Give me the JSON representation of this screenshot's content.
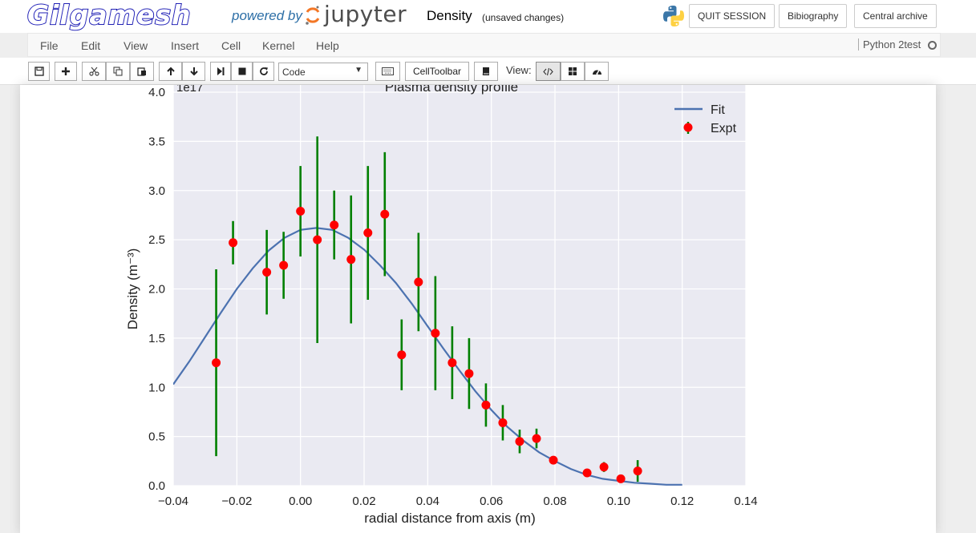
{
  "header": {
    "logo_text": "Gilgamesh",
    "powered_by": "powered by",
    "jupyter_word": "jupyter",
    "notebook_name": "Density",
    "save_status": "(unsaved changes)",
    "buttons": [
      "QUIT SESSION",
      "Bibiography",
      "Central archive"
    ]
  },
  "menu": {
    "items": [
      "File",
      "Edit",
      "View",
      "Insert",
      "Cell",
      "Kernel",
      "Help"
    ],
    "kernel": "Python 2test"
  },
  "toolbar": {
    "cell_type": "Code",
    "celltoolbar_label": "CellToolbar",
    "view_label": "View:",
    "icons": [
      "save-icon",
      "plus-icon",
      "cut-icon",
      "copy-icon",
      "paste-icon",
      "arrow-up-icon",
      "arrow-down-icon",
      "step-forward-icon",
      "stop-icon",
      "restart-icon",
      "keyboard-icon",
      "book-icon",
      "code-view-icon",
      "grid-view-icon",
      "dashboard-icon"
    ]
  },
  "chart_data": {
    "type": "scatter",
    "title": "Plasma density profile",
    "offset_text": "1e17",
    "xlabel": "radial distance from axis (m)",
    "ylabel": "Density (m⁻³)",
    "xlim": [
      -0.04,
      0.14
    ],
    "ylim": [
      0.0,
      4.0
    ],
    "xticks": [
      "−0.04",
      "−0.02",
      "0.00",
      "0.02",
      "0.04",
      "0.06",
      "0.08",
      "0.10",
      "0.12",
      "0.14"
    ],
    "yticks": [
      "0.0",
      "0.5",
      "1.0",
      "1.5",
      "2.0",
      "2.5",
      "3.0",
      "3.5",
      "4.0"
    ],
    "grid": true,
    "legend_position": "top-right",
    "background": "#eaeaf2",
    "series": [
      {
        "name": "Fit",
        "kind": "line",
        "color": "#4c72b0",
        "x": [
          -0.04,
          -0.035,
          -0.03,
          -0.025,
          -0.02,
          -0.015,
          -0.01,
          -0.005,
          0.0,
          0.005,
          0.01,
          0.015,
          0.02,
          0.025,
          0.03,
          0.035,
          0.04,
          0.045,
          0.05,
          0.055,
          0.06,
          0.065,
          0.07,
          0.075,
          0.08,
          0.085,
          0.09,
          0.095,
          0.1,
          0.105,
          0.11,
          0.115,
          0.12
        ],
        "y": [
          1.03,
          1.26,
          1.51,
          1.76,
          2.0,
          2.21,
          2.39,
          2.52,
          2.6,
          2.62,
          2.6,
          2.52,
          2.4,
          2.24,
          2.06,
          1.85,
          1.62,
          1.39,
          1.17,
          0.96,
          0.77,
          0.6,
          0.46,
          0.34,
          0.25,
          0.17,
          0.11,
          0.07,
          0.05,
          0.03,
          0.02,
          0.01,
          0.01
        ]
      },
      {
        "name": "Expt",
        "kind": "errorbar",
        "marker_color": "#ff0000",
        "errorbar_color": "#008000",
        "x": [
          -0.0265,
          -0.0212,
          -0.0106,
          -0.0053,
          0.0,
          0.0053,
          0.0106,
          0.0159,
          0.0212,
          0.0265,
          0.0318,
          0.0371,
          0.0424,
          0.0477,
          0.053,
          0.0583,
          0.0636,
          0.0689,
          0.0742,
          0.0795,
          0.0901,
          0.0954,
          0.1007,
          0.106
        ],
        "y": [
          1.25,
          2.47,
          2.17,
          2.24,
          2.79,
          2.5,
          2.65,
          2.3,
          2.57,
          2.76,
          1.33,
          2.07,
          1.55,
          1.25,
          1.14,
          0.82,
          0.64,
          0.45,
          0.48,
          0.26,
          0.13,
          0.19,
          0.07,
          0.15
        ],
        "err": [
          0.95,
          0.22,
          0.43,
          0.34,
          0.46,
          1.05,
          0.35,
          0.65,
          0.68,
          0.63,
          0.36,
          0.5,
          0.58,
          0.37,
          0.36,
          0.22,
          0.18,
          0.12,
          0.1,
          0.04,
          0.04,
          0.05,
          0.03,
          0.11
        ]
      }
    ]
  }
}
